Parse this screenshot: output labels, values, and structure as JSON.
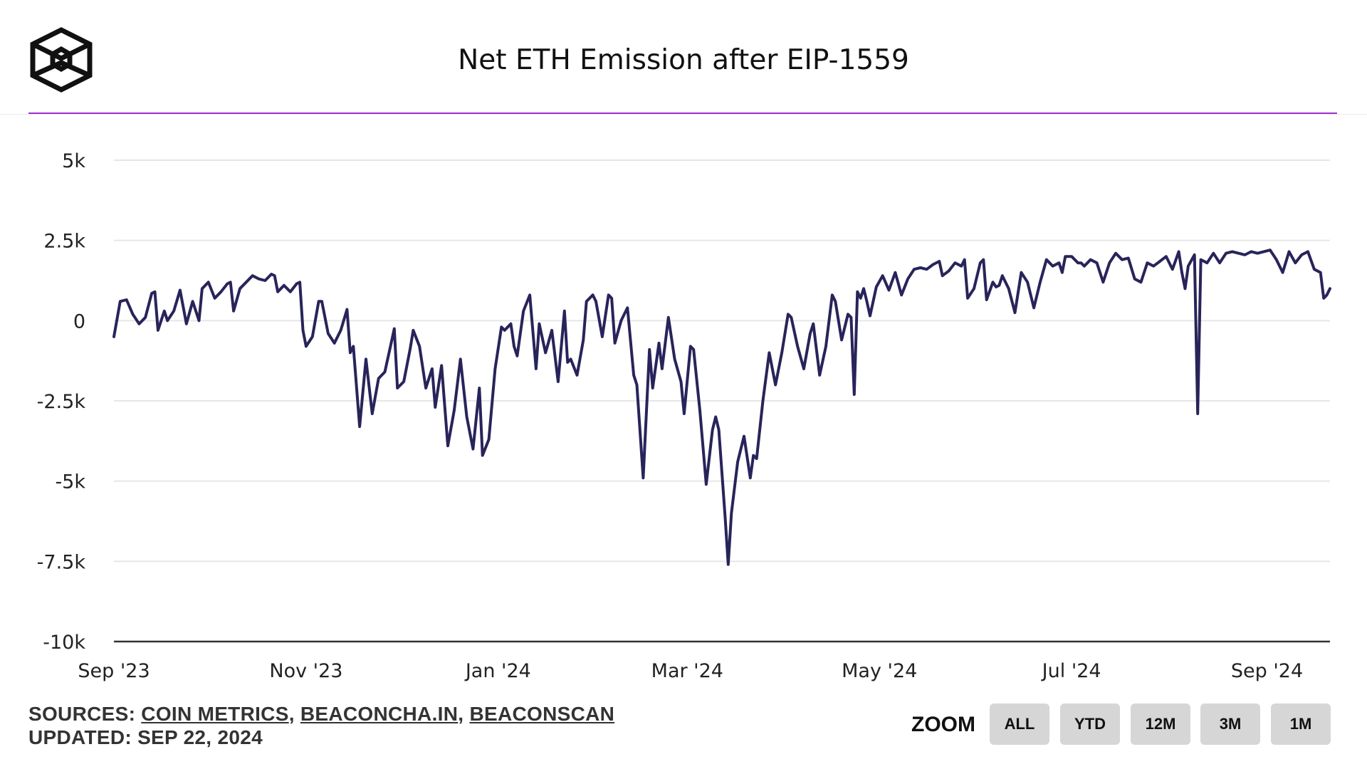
{
  "header": {
    "title": "Net ETH Emission after EIP-1559",
    "logo_icon": "cube-logo-icon",
    "accent_color": "#a22fd1"
  },
  "footer": {
    "sources_prefix": "SOURCES:",
    "sources": [
      "COIN METRICS",
      "BEACONCHA.IN",
      "BEACONSCAN"
    ],
    "separator": ",",
    "updated": "UPDATED: SEP 22, 2024"
  },
  "zoom": {
    "label": "ZOOM",
    "buttons": [
      "ALL",
      "YTD",
      "12M",
      "3M",
      "1M"
    ]
  },
  "chart_data": {
    "type": "line",
    "title": "Net ETH Emission after EIP-1559",
    "xlabel": "",
    "ylabel": "",
    "line_color": "#28245a",
    "grid": true,
    "ylim": [
      -10000,
      5000
    ],
    "y_ticks": [
      5000,
      2500,
      0,
      -2500,
      -5000,
      -7500,
      -10000
    ],
    "y_tick_labels": [
      "5k",
      "2.5k",
      "0",
      "-2.5k",
      "-5k",
      "-7.5k",
      "-10k"
    ],
    "x_range": [
      "2023-09-01",
      "2024-09-21"
    ],
    "x_tick_labels": [
      "Sep '23",
      "Nov '23",
      "Jan '24",
      "Mar '24",
      "May '24",
      "Jul '24",
      "Sep '24"
    ],
    "x_tick_dates": [
      "2023-09-01",
      "2023-11-01",
      "2024-01-01",
      "2024-03-01",
      "2024-05-01",
      "2024-07-01",
      "2024-09-01"
    ],
    "series": [
      {
        "values": [
          [
            "2023-09-01",
            -500
          ],
          [
            "2023-09-03",
            600
          ],
          [
            "2023-09-05",
            650
          ],
          [
            "2023-09-07",
            200
          ],
          [
            "2023-09-09",
            -100
          ],
          [
            "2023-09-11",
            100
          ],
          [
            "2023-09-13",
            850
          ],
          [
            "2023-09-14",
            900
          ],
          [
            "2023-09-15",
            -300
          ],
          [
            "2023-09-17",
            300
          ],
          [
            "2023-09-18",
            0
          ],
          [
            "2023-09-20",
            300
          ],
          [
            "2023-09-22",
            950
          ],
          [
            "2023-09-24",
            -100
          ],
          [
            "2023-09-26",
            600
          ],
          [
            "2023-09-28",
            0
          ],
          [
            "2023-09-29",
            1000
          ],
          [
            "2023-10-01",
            1200
          ],
          [
            "2023-10-03",
            700
          ],
          [
            "2023-10-05",
            900
          ],
          [
            "2023-10-07",
            1150
          ],
          [
            "2023-10-08",
            1200
          ],
          [
            "2023-10-09",
            300
          ],
          [
            "2023-10-11",
            1000
          ],
          [
            "2023-10-13",
            1200
          ],
          [
            "2023-10-15",
            1400
          ],
          [
            "2023-10-17",
            1300
          ],
          [
            "2023-10-19",
            1250
          ],
          [
            "2023-10-21",
            1450
          ],
          [
            "2023-10-22",
            1400
          ],
          [
            "2023-10-23",
            900
          ],
          [
            "2023-10-25",
            1100
          ],
          [
            "2023-10-27",
            900
          ],
          [
            "2023-10-29",
            1150
          ],
          [
            "2023-10-30",
            1200
          ],
          [
            "2023-10-31",
            -300
          ],
          [
            "2023-11-01",
            -800
          ],
          [
            "2023-11-03",
            -500
          ],
          [
            "2023-11-05",
            600
          ],
          [
            "2023-11-06",
            600
          ],
          [
            "2023-11-08",
            -400
          ],
          [
            "2023-11-10",
            -700
          ],
          [
            "2023-11-12",
            -300
          ],
          [
            "2023-11-14",
            350
          ],
          [
            "2023-11-15",
            -1000
          ],
          [
            "2023-11-16",
            -800
          ],
          [
            "2023-11-18",
            -3300
          ],
          [
            "2023-11-20",
            -1200
          ],
          [
            "2023-11-22",
            -2900
          ],
          [
            "2023-11-24",
            -1800
          ],
          [
            "2023-11-26",
            -1600
          ],
          [
            "2023-11-28",
            -700
          ],
          [
            "2023-11-29",
            -250
          ],
          [
            "2023-11-30",
            -2100
          ],
          [
            "2023-12-02",
            -1900
          ],
          [
            "2023-12-04",
            -900
          ],
          [
            "2023-12-05",
            -300
          ],
          [
            "2023-12-07",
            -800
          ],
          [
            "2023-12-09",
            -2100
          ],
          [
            "2023-12-11",
            -1500
          ],
          [
            "2023-12-12",
            -2700
          ],
          [
            "2023-12-14",
            -1400
          ],
          [
            "2023-12-16",
            -3900
          ],
          [
            "2023-12-18",
            -2800
          ],
          [
            "2023-12-20",
            -1200
          ],
          [
            "2023-12-22",
            -3000
          ],
          [
            "2023-12-24",
            -4000
          ],
          [
            "2023-12-26",
            -2100
          ],
          [
            "2023-12-27",
            -4200
          ],
          [
            "2023-12-29",
            -3700
          ],
          [
            "2023-12-31",
            -1500
          ],
          [
            "2024-01-02",
            -200
          ],
          [
            "2024-01-03",
            -300
          ],
          [
            "2024-01-05",
            -100
          ],
          [
            "2024-01-06",
            -800
          ],
          [
            "2024-01-07",
            -1100
          ],
          [
            "2024-01-09",
            300
          ],
          [
            "2024-01-11",
            800
          ],
          [
            "2024-01-13",
            -1500
          ],
          [
            "2024-01-14",
            -100
          ],
          [
            "2024-01-16",
            -1000
          ],
          [
            "2024-01-18",
            -300
          ],
          [
            "2024-01-20",
            -1900
          ],
          [
            "2024-01-22",
            300
          ],
          [
            "2024-01-23",
            -1300
          ],
          [
            "2024-01-24",
            -1200
          ],
          [
            "2024-01-26",
            -1700
          ],
          [
            "2024-01-28",
            -600
          ],
          [
            "2024-01-29",
            600
          ],
          [
            "2024-01-31",
            800
          ],
          [
            "2024-02-01",
            600
          ],
          [
            "2024-02-03",
            -500
          ],
          [
            "2024-02-05",
            800
          ],
          [
            "2024-02-06",
            700
          ],
          [
            "2024-02-07",
            -700
          ],
          [
            "2024-02-09",
            0
          ],
          [
            "2024-02-11",
            400
          ],
          [
            "2024-02-13",
            -1700
          ],
          [
            "2024-02-14",
            -2000
          ],
          [
            "2024-02-16",
            -4900
          ],
          [
            "2024-02-18",
            -900
          ],
          [
            "2024-02-19",
            -2100
          ],
          [
            "2024-02-21",
            -700
          ],
          [
            "2024-02-22",
            -1500
          ],
          [
            "2024-02-24",
            100
          ],
          [
            "2024-02-26",
            -1200
          ],
          [
            "2024-02-28",
            -1900
          ],
          [
            "2024-02-29",
            -2900
          ],
          [
            "2024-03-02",
            -800
          ],
          [
            "2024-03-03",
            -900
          ],
          [
            "2024-03-05",
            -2800
          ],
          [
            "2024-03-07",
            -5100
          ],
          [
            "2024-03-09",
            -3400
          ],
          [
            "2024-03-10",
            -3000
          ],
          [
            "2024-03-11",
            -3400
          ],
          [
            "2024-03-13",
            -6100
          ],
          [
            "2024-03-14",
            -7600
          ],
          [
            "2024-03-15",
            -6000
          ],
          [
            "2024-03-17",
            -4400
          ],
          [
            "2024-03-19",
            -3600
          ],
          [
            "2024-03-21",
            -4900
          ],
          [
            "2024-03-22",
            -4200
          ],
          [
            "2024-03-23",
            -4300
          ],
          [
            "2024-03-25",
            -2500
          ],
          [
            "2024-03-27",
            -1000
          ],
          [
            "2024-03-29",
            -2000
          ],
          [
            "2024-03-31",
            -1000
          ],
          [
            "2024-04-02",
            200
          ],
          [
            "2024-04-03",
            100
          ],
          [
            "2024-04-05",
            -800
          ],
          [
            "2024-04-07",
            -1500
          ],
          [
            "2024-04-09",
            -400
          ],
          [
            "2024-04-10",
            -100
          ],
          [
            "2024-04-12",
            -1700
          ],
          [
            "2024-04-14",
            -800
          ],
          [
            "2024-04-16",
            800
          ],
          [
            "2024-04-17",
            600
          ],
          [
            "2024-04-19",
            -600
          ],
          [
            "2024-04-21",
            200
          ],
          [
            "2024-04-22",
            100
          ],
          [
            "2024-04-23",
            -2300
          ],
          [
            "2024-04-24",
            900
          ],
          [
            "2024-04-25",
            700
          ],
          [
            "2024-04-26",
            1000
          ],
          [
            "2024-04-27",
            600
          ],
          [
            "2024-04-28",
            150
          ],
          [
            "2024-04-30",
            1050
          ],
          [
            "2024-05-02",
            1400
          ],
          [
            "2024-05-04",
            950
          ],
          [
            "2024-05-06",
            1500
          ],
          [
            "2024-05-08",
            800
          ],
          [
            "2024-05-10",
            1300
          ],
          [
            "2024-05-12",
            1600
          ],
          [
            "2024-05-14",
            1650
          ],
          [
            "2024-05-16",
            1600
          ],
          [
            "2024-05-18",
            1750
          ],
          [
            "2024-05-20",
            1850
          ],
          [
            "2024-05-21",
            1400
          ],
          [
            "2024-05-23",
            1550
          ],
          [
            "2024-05-25",
            1800
          ],
          [
            "2024-05-27",
            1700
          ],
          [
            "2024-05-28",
            1900
          ],
          [
            "2024-05-29",
            700
          ],
          [
            "2024-05-31",
            1000
          ],
          [
            "2024-06-02",
            1800
          ],
          [
            "2024-06-03",
            1900
          ],
          [
            "2024-06-04",
            650
          ],
          [
            "2024-06-06",
            1200
          ],
          [
            "2024-06-07",
            1050
          ],
          [
            "2024-06-08",
            1100
          ],
          [
            "2024-06-09",
            1400
          ],
          [
            "2024-06-11",
            1000
          ],
          [
            "2024-06-13",
            250
          ],
          [
            "2024-06-15",
            1500
          ],
          [
            "2024-06-17",
            1200
          ],
          [
            "2024-06-19",
            400
          ],
          [
            "2024-06-21",
            1200
          ],
          [
            "2024-06-23",
            1900
          ],
          [
            "2024-06-25",
            1700
          ],
          [
            "2024-06-27",
            1800
          ],
          [
            "2024-06-28",
            1500
          ],
          [
            "2024-06-29",
            2000
          ],
          [
            "2024-07-01",
            2000
          ],
          [
            "2024-07-03",
            1800
          ],
          [
            "2024-07-04",
            1800
          ],
          [
            "2024-07-05",
            1700
          ],
          [
            "2024-07-07",
            1900
          ],
          [
            "2024-07-09",
            1800
          ],
          [
            "2024-07-11",
            1200
          ],
          [
            "2024-07-13",
            1800
          ],
          [
            "2024-07-15",
            2100
          ],
          [
            "2024-07-17",
            1900
          ],
          [
            "2024-07-19",
            1950
          ],
          [
            "2024-07-21",
            1300
          ],
          [
            "2024-07-23",
            1200
          ],
          [
            "2024-07-25",
            1800
          ],
          [
            "2024-07-27",
            1700
          ],
          [
            "2024-07-29",
            1850
          ],
          [
            "2024-07-31",
            2000
          ],
          [
            "2024-08-02",
            1600
          ],
          [
            "2024-08-04",
            2150
          ],
          [
            "2024-08-05",
            1500
          ],
          [
            "2024-08-06",
            1000
          ],
          [
            "2024-08-07",
            1700
          ],
          [
            "2024-08-09",
            2050
          ],
          [
            "2024-08-10",
            -2900
          ],
          [
            "2024-08-11",
            1900
          ],
          [
            "2024-08-13",
            1800
          ],
          [
            "2024-08-15",
            2100
          ],
          [
            "2024-08-17",
            1800
          ],
          [
            "2024-08-19",
            2100
          ],
          [
            "2024-08-21",
            2150
          ],
          [
            "2024-08-23",
            2100
          ],
          [
            "2024-08-25",
            2050
          ],
          [
            "2024-08-27",
            2150
          ],
          [
            "2024-08-29",
            2100
          ],
          [
            "2024-08-31",
            2150
          ],
          [
            "2024-09-02",
            2200
          ],
          [
            "2024-09-04",
            1900
          ],
          [
            "2024-09-06",
            1500
          ],
          [
            "2024-09-08",
            2150
          ],
          [
            "2024-09-10",
            1800
          ],
          [
            "2024-09-12",
            2050
          ],
          [
            "2024-09-14",
            2150
          ],
          [
            "2024-09-16",
            1600
          ],
          [
            "2024-09-18",
            1500
          ],
          [
            "2024-09-19",
            700
          ],
          [
            "2024-09-20",
            800
          ],
          [
            "2024-09-21",
            1000
          ]
        ]
      }
    ]
  }
}
